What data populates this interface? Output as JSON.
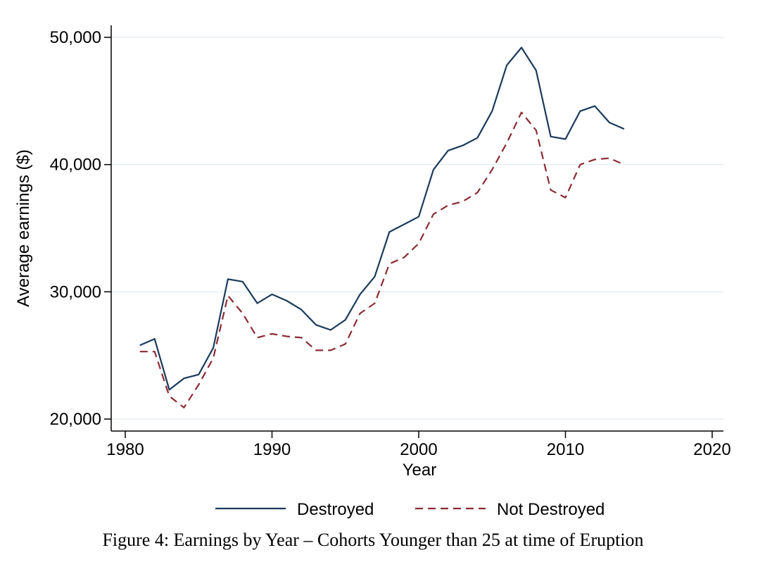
{
  "caption": "Figure 4: Earnings by Year – Cohorts Younger than 25 at time of Eruption",
  "chart_data": {
    "type": "line",
    "title": "",
    "xlabel": "Year",
    "ylabel": "Average earnings ($)",
    "xlim": [
      1980,
      2020
    ],
    "ylim": [
      20000,
      50000
    ],
    "xticks": [
      1980,
      1990,
      2000,
      2010,
      2020
    ],
    "xtick_labels": [
      "1980",
      "1990",
      "2000",
      "2010",
      "2020"
    ],
    "yticks": [
      20000,
      30000,
      40000,
      50000
    ],
    "ytick_labels": [
      "20,000",
      "30,000",
      "40,000",
      "50,000"
    ],
    "grid": "horizontal",
    "legend_position": "bottom",
    "x": [
      1981,
      1982,
      1983,
      1984,
      1985,
      1986,
      1987,
      1988,
      1989,
      1990,
      1991,
      1992,
      1993,
      1994,
      1995,
      1996,
      1997,
      1998,
      1999,
      2000,
      2001,
      2002,
      2003,
      2004,
      2005,
      2006,
      2007,
      2008,
      2009,
      2010,
      2011,
      2012,
      2013,
      2014
    ],
    "series": [
      {
        "name": "Destroyed",
        "color": "#1a3a5c",
        "style": "solid",
        "values": [
          25800,
          26300,
          22300,
          23200,
          23500,
          25600,
          31000,
          30800,
          29100,
          29800,
          29300,
          28600,
          27400,
          27000,
          27800,
          29800,
          31200,
          34700,
          35300,
          35900,
          39600,
          41100,
          41500,
          42100,
          44200,
          47800,
          49200,
          47400,
          42200,
          42000,
          44200,
          44600,
          43300,
          42800
        ]
      },
      {
        "name": "Not Destroyed",
        "color": "#8b2c34",
        "style": "dashed",
        "values": [
          25300,
          25300,
          21800,
          20900,
          22700,
          24800,
          29700,
          28300,
          26400,
          26700,
          26500,
          26400,
          25400,
          25400,
          25900,
          28300,
          29100,
          32200,
          32700,
          33800,
          36100,
          36800,
          37100,
          37800,
          39600,
          41700,
          44100,
          42700,
          38000,
          37400,
          40000,
          40400,
          40500,
          40000
        ]
      }
    ]
  }
}
